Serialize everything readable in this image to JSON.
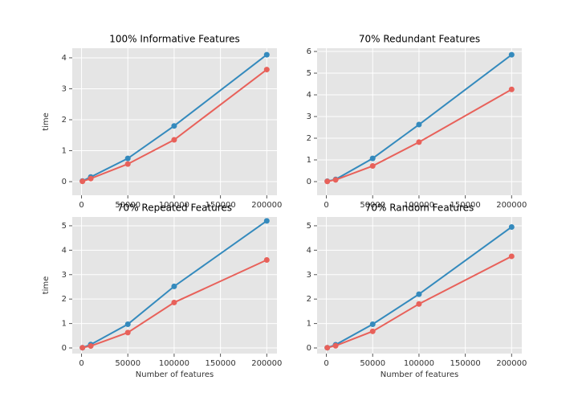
{
  "chart_data": [
    {
      "type": "line",
      "title": "100% Informative Features",
      "ylabel": "time",
      "x": [
        1000,
        10000,
        50000,
        100000,
        200000
      ],
      "series": [
        {
          "color": "#348abd",
          "values": [
            0.02,
            0.15,
            0.75,
            1.8,
            4.1
          ]
        },
        {
          "color": "#e8615a",
          "values": [
            0.01,
            0.1,
            0.57,
            1.35,
            3.62
          ]
        }
      ],
      "xlim": [
        -10000,
        211000
      ],
      "ylim": [
        -0.44,
        4.31
      ],
      "xticks": [
        0,
        50000,
        100000,
        150000,
        200000
      ],
      "yticks": [
        0,
        1,
        2,
        3,
        4
      ],
      "grid": true
    },
    {
      "type": "line",
      "title": "70% Redundant Features",
      "x": [
        1000,
        10000,
        50000,
        100000,
        200000
      ],
      "series": [
        {
          "color": "#348abd",
          "values": [
            0.02,
            0.1,
            1.07,
            2.63,
            5.85
          ]
        },
        {
          "color": "#e8615a",
          "values": [
            0.01,
            0.08,
            0.72,
            1.82,
            4.25
          ]
        }
      ],
      "xlim": [
        -10000,
        211000
      ],
      "ylim": [
        -0.63,
        6.15
      ],
      "xticks": [
        0,
        50000,
        100000,
        150000,
        200000
      ],
      "yticks": [
        0,
        1,
        2,
        3,
        4,
        5,
        6
      ],
      "grid": true
    },
    {
      "type": "line",
      "title": "70% Repeated Features",
      "ylabel": "time",
      "xlabel": "Number of features",
      "x": [
        1000,
        10000,
        50000,
        100000,
        200000
      ],
      "series": [
        {
          "color": "#348abd",
          "values": [
            0.01,
            0.14,
            0.97,
            2.52,
            5.2
          ]
        },
        {
          "color": "#e8615a",
          "values": [
            0.01,
            0.08,
            0.63,
            1.86,
            3.6
          ]
        }
      ],
      "xlim": [
        -10000,
        211000
      ],
      "ylim": [
        -0.23,
        5.36
      ],
      "xticks": [
        0,
        50000,
        100000,
        150000,
        200000
      ],
      "yticks": [
        0,
        1,
        2,
        3,
        4,
        5
      ],
      "grid": true
    },
    {
      "type": "line",
      "title": "70% Random Features",
      "xlabel": "Number of features",
      "x": [
        1000,
        10000,
        50000,
        100000,
        200000
      ],
      "series": [
        {
          "color": "#348abd",
          "values": [
            0.01,
            0.13,
            0.97,
            2.2,
            4.95
          ]
        },
        {
          "color": "#e8615a",
          "values": [
            0.01,
            0.09,
            0.68,
            1.8,
            3.75
          ]
        }
      ],
      "xlim": [
        -10000,
        211000
      ],
      "ylim": [
        -0.23,
        5.36
      ],
      "xticks": [
        0,
        50000,
        100000,
        150000,
        200000
      ],
      "yticks": [
        0,
        1,
        2,
        3,
        4,
        5
      ],
      "grid": true
    }
  ]
}
